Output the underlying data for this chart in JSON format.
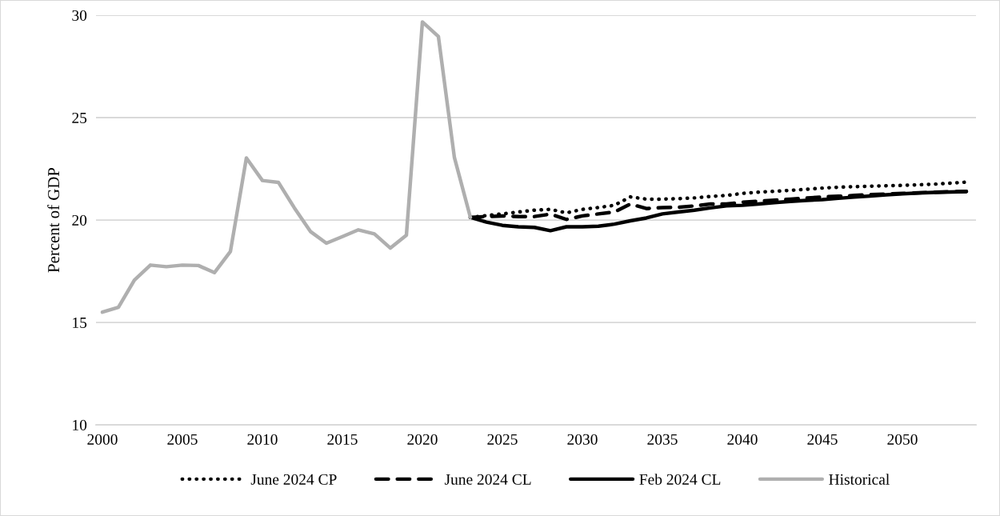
{
  "chart_data": {
    "type": "line",
    "ylabel": "Percent of GDP",
    "xlim": [
      1999.6,
      2054.6
    ],
    "xticks": [
      2000,
      2005,
      2010,
      2015,
      2020,
      2025,
      2030,
      2035,
      2040,
      2045,
      2050
    ],
    "ylim": [
      10,
      30
    ],
    "yticks": [
      10,
      15,
      20,
      25,
      30
    ],
    "grid": "y",
    "legend": "bottom",
    "marker": "none",
    "series": [
      {
        "name": "June 2024 CP",
        "color": "#000000",
        "line_style": "dotted",
        "x": [
          2023,
          2024,
          2025,
          2026,
          2027,
          2028,
          2029,
          2030,
          2031,
          2032,
          2033,
          2034,
          2035,
          2036,
          2037,
          2038,
          2039,
          2040,
          2041,
          2042,
          2043,
          2044,
          2045,
          2046,
          2047,
          2048,
          2049,
          2050,
          2051,
          2052,
          2053,
          2054
        ],
        "values": [
          20.13,
          20.22,
          20.3,
          20.39,
          20.48,
          20.52,
          20.35,
          20.52,
          20.61,
          20.72,
          21.13,
          21.02,
          21.02,
          21.04,
          21.08,
          21.15,
          21.2,
          21.3,
          21.36,
          21.4,
          21.45,
          21.5,
          21.56,
          21.6,
          21.63,
          21.65,
          21.67,
          21.69,
          21.72,
          21.75,
          21.8,
          21.85
        ]
      },
      {
        "name": "June 2024 CL",
        "color": "#000000",
        "line_style": "dashed",
        "x": [
          2023,
          2024,
          2025,
          2026,
          2027,
          2028,
          2029,
          2030,
          2031,
          2032,
          2033,
          2034,
          2035,
          2036,
          2037,
          2038,
          2039,
          2040,
          2041,
          2042,
          2043,
          2044,
          2045,
          2046,
          2047,
          2048,
          2049,
          2050,
          2051,
          2052,
          2053,
          2054
        ],
        "values": [
          20.13,
          20.17,
          20.2,
          20.17,
          20.17,
          20.29,
          20.03,
          20.2,
          20.3,
          20.39,
          20.78,
          20.56,
          20.61,
          20.62,
          20.69,
          20.78,
          20.78,
          20.87,
          20.92,
          20.97,
          21.02,
          21.07,
          21.13,
          21.16,
          21.2,
          21.24,
          21.27,
          21.3,
          21.33,
          21.36,
          21.38,
          21.4
        ]
      },
      {
        "name": "Feb 2024 CL",
        "color": "#000000",
        "line_style": "solid",
        "x": [
          2023,
          2024,
          2025,
          2026,
          2027,
          2028,
          2029,
          2030,
          2031,
          2032,
          2033,
          2034,
          2035,
          2036,
          2037,
          2038,
          2039,
          2040,
          2041,
          2042,
          2043,
          2044,
          2045,
          2046,
          2047,
          2048,
          2049,
          2050,
          2051,
          2052,
          2053,
          2054
        ],
        "values": [
          20.13,
          19.9,
          19.74,
          19.67,
          19.64,
          19.48,
          19.67,
          19.67,
          19.7,
          19.8,
          19.96,
          20.1,
          20.3,
          20.39,
          20.48,
          20.59,
          20.69,
          20.72,
          20.78,
          20.85,
          20.91,
          20.96,
          21.0,
          21.06,
          21.12,
          21.17,
          21.23,
          21.28,
          21.32,
          21.35,
          21.37,
          21.39
        ]
      },
      {
        "name": "Historical",
        "color": "#afafaf",
        "line_style": "solid",
        "x": [
          2000,
          2001,
          2002,
          2003,
          2004,
          2005,
          2006,
          2007,
          2008,
          2009,
          2010,
          2011,
          2012,
          2013,
          2014,
          2015,
          2016,
          2017,
          2018,
          2019,
          2020,
          2021,
          2022,
          2023
        ],
        "values": [
          15.5,
          15.74,
          17.07,
          17.8,
          17.72,
          17.8,
          17.78,
          17.43,
          18.46,
          23.03,
          21.93,
          21.84,
          20.59,
          19.44,
          18.87,
          19.19,
          19.52,
          19.32,
          18.63,
          19.26,
          29.67,
          28.96,
          23.05,
          20.13
        ]
      }
    ]
  }
}
